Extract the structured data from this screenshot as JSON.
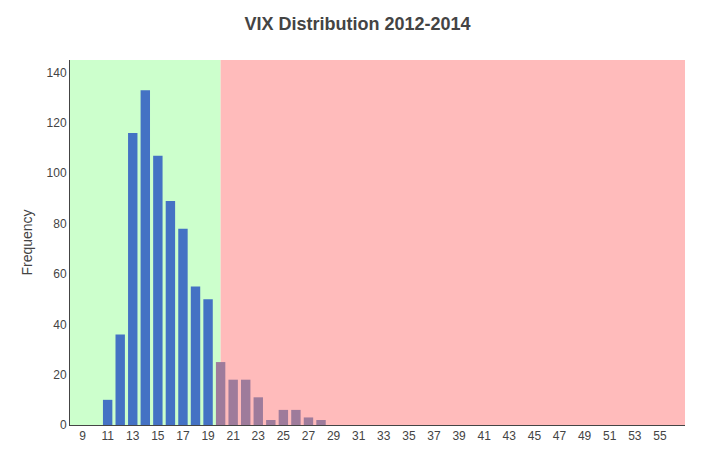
{
  "chart_data": {
    "type": "bar",
    "title": "VIX Distribution 2012-2014",
    "ylabel": "Frequency",
    "xlim": [
      8.0,
      57.0
    ],
    "ylim": [
      0,
      145
    ],
    "xticks": [
      9,
      11,
      13,
      15,
      17,
      19,
      21,
      23,
      25,
      27,
      29,
      31,
      33,
      35,
      37,
      39,
      41,
      43,
      45,
      47,
      49,
      51,
      53,
      55
    ],
    "yticks": [
      0,
      20,
      40,
      60,
      80,
      100,
      120,
      140
    ],
    "grid": false,
    "regions": [
      {
        "start": 8.0,
        "end": 20.0,
        "color": "#ccffcc"
      },
      {
        "start": 20.0,
        "end": 57.0,
        "color": "#ffbbbb"
      }
    ],
    "series": [
      {
        "color": "#4472C4",
        "x": [
          9,
          10,
          11,
          12,
          13,
          14,
          15,
          16,
          17,
          18,
          19
        ],
        "values": [
          0,
          0,
          10,
          36,
          116,
          133,
          107,
          89,
          78,
          55,
          50
        ]
      },
      {
        "color": "#9E7B9B",
        "x": [
          20,
          21,
          22,
          23,
          24,
          25,
          26,
          27,
          28
        ],
        "values": [
          25,
          18,
          18,
          11,
          2,
          6,
          6,
          3,
          2
        ]
      }
    ]
  }
}
